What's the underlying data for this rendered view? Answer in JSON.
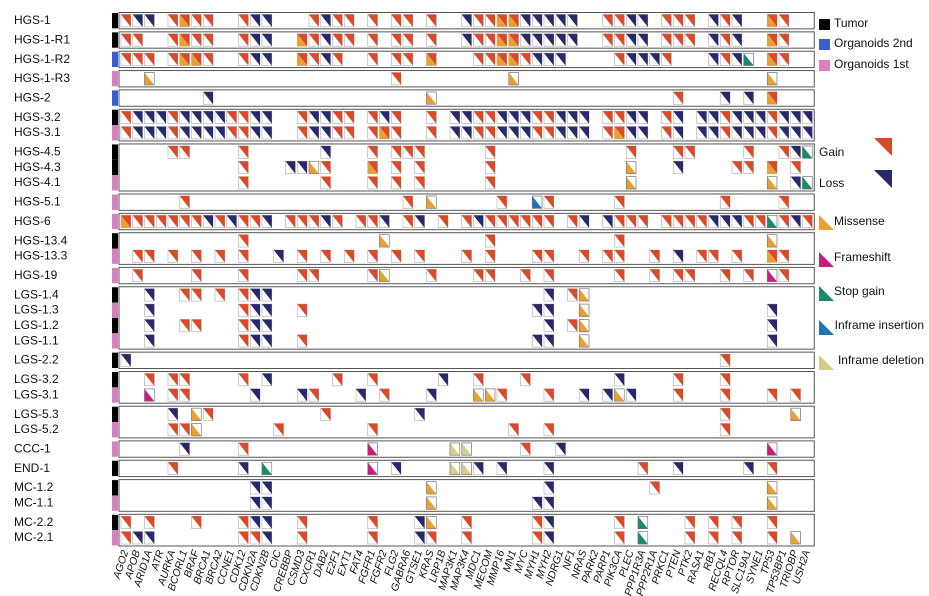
{
  "chart_data": {
    "type": "heatmap",
    "title": "",
    "samples": [
      "HGS-1",
      "HGS-1-R1",
      "HGS-1-R2",
      "HGS-1-R3",
      "HGS-2",
      "HGS-3.2",
      "HGS-3.1",
      "HGS-4.5",
      "HGS-4.3",
      "HGS-4.1",
      "HGS-5.1",
      "HGS-6",
      "HGS-13.4",
      "HGS-13.3",
      "HGS-19",
      "LGS-1.4",
      "LGS-1.3",
      "LGS-1.2",
      "LGS-1.1",
      "LGS-2.2",
      "LGS-3.2",
      "LGS-3.1",
      "LGS-5.3",
      "LGS-5.2",
      "CCC-1",
      "END-1",
      "MC-1.2",
      "MC-1.1",
      "MC-2.2",
      "MC-2.1"
    ],
    "sample_type": [
      "tumor",
      "tumor",
      "organoid_2nd",
      "organoid_1st",
      "organoid_2nd",
      "tumor",
      "organoid_1st",
      "tumor",
      "tumor",
      "organoid_1st",
      "organoid_1st",
      "organoid_1st",
      "tumor",
      "organoid_1st",
      "organoid_1st",
      "tumor",
      "organoid_1st",
      "tumor",
      "organoid_1st",
      "tumor",
      "tumor",
      "organoid_1st",
      "tumor",
      "organoid_1st",
      "organoid_1st",
      "tumor",
      "tumor",
      "organoid_1st",
      "tumor",
      "organoid_1st"
    ],
    "groups": [
      {
        "name": "HGS-1",
        "rows": [
          0
        ]
      },
      {
        "name": "HGS-1-R1",
        "rows": [
          1
        ]
      },
      {
        "name": "HGS-1-R2",
        "rows": [
          2
        ]
      },
      {
        "name": "HGS-1-R3",
        "rows": [
          3
        ]
      },
      {
        "name": "HGS-2",
        "rows": [
          4
        ]
      },
      {
        "name": "HGS-3",
        "rows": [
          5,
          6
        ]
      },
      {
        "name": "HGS-4",
        "rows": [
          7,
          8,
          9
        ]
      },
      {
        "name": "HGS-5",
        "rows": [
          10
        ]
      },
      {
        "name": "HGS-6",
        "rows": [
          11
        ]
      },
      {
        "name": "HGS-13",
        "rows": [
          12,
          13
        ]
      },
      {
        "name": "HGS-19",
        "rows": [
          14
        ]
      },
      {
        "name": "LGS-1",
        "rows": [
          15,
          16,
          17,
          18
        ]
      },
      {
        "name": "LGS-2",
        "rows": [
          19
        ]
      },
      {
        "name": "LGS-3",
        "rows": [
          20,
          21
        ]
      },
      {
        "name": "LGS-5",
        "rows": [
          22,
          23
        ]
      },
      {
        "name": "CCC-1",
        "rows": [
          24
        ]
      },
      {
        "name": "END-1",
        "rows": [
          25
        ]
      },
      {
        "name": "MC-1",
        "rows": [
          26,
          27
        ]
      },
      {
        "name": "MC-2",
        "rows": [
          28,
          29
        ]
      }
    ],
    "genes": [
      "AGO2",
      "APOB",
      "ARID1A",
      "ATR",
      "AURKA",
      "BCORL1",
      "BRAF",
      "BRCA1",
      "BRCA2",
      "CCNE1",
      "CDK12",
      "CDKN2A",
      "CDKN2B",
      "CIC",
      "CREBBP",
      "CSMD3",
      "CXCR1",
      "DAB2",
      "E2F1",
      "EXT1",
      "FAT4",
      "FGFR1",
      "FGFR2",
      "FLG2",
      "GABRA6",
      "GTSE1",
      "KRAS",
      "LRP1B",
      "MAP3K1",
      "MAP3K4",
      "MDC1",
      "MECOM",
      "MMP16",
      "MN1",
      "MYC",
      "MYH1",
      "MYH2",
      "NDRG1",
      "NF1",
      "NRAS",
      "PARK2",
      "PARP1",
      "PIK3CA",
      "PLEC",
      "PPP1R3A",
      "PPP2R1A",
      "PRKC1",
      "PTEN",
      "PTK2",
      "RASA1",
      "RB1",
      "RECQL4",
      "RPTOR",
      "SLC19A1",
      "SYNE1",
      "TP53",
      "TP53BP1",
      "TRIOBP",
      "USH2A"
    ],
    "x_tick_labels": [
      "AGO2",
      "APOB",
      "ARID1A",
      "ATR",
      "AURKA",
      "BCORL1",
      "BRAF",
      "BRCA1",
      "BRCA2",
      "CCNE1",
      "CDK12",
      "CDKN2A",
      "CDKN2B",
      "CIC",
      "CREBBP",
      "CSMD3",
      "CXCR1",
      "DAB2",
      "E2F1",
      "EXT1",
      "FAT4",
      "FGFR1",
      "FGFR2",
      "FLG2",
      "GABRA6",
      "GTSE1",
      "KRAS",
      "LRP1B",
      "MAP3K1",
      "MAP3K4",
      "MDC1",
      "MECOM",
      "MMP16",
      "MN1",
      "MYC",
      "MYH1",
      "MYH2",
      "NDRG1",
      "NF1",
      "NRAS",
      "PARK2",
      "PARP1",
      "PIK3CA",
      "PLEC",
      "PPP1R3A",
      "PPP2R1A",
      "PRKC1",
      "PTEN",
      "PTK2",
      "RASA1",
      "RB1",
      "RECQL4",
      "RPTOR",
      "SLC19A1",
      "SYNE1",
      "TP53",
      "TP53BP1",
      "TRIOBP",
      "USH2A"
    ],
    "legend_sample_types": [
      {
        "key": "tumor",
        "label": "Tumor",
        "color": "#000000"
      },
      {
        "key": "organoid_2nd",
        "label": "Organoids 2nd",
        "color": "#3a5fcd"
      },
      {
        "key": "organoid_1st",
        "label": "Organoids 1st",
        "color": "#d87fc0"
      }
    ],
    "legend_cnv": [
      {
        "key": "gain",
        "label": "Gain",
        "color": "#d94a2b"
      },
      {
        "key": "loss",
        "label": "Loss",
        "color": "#262a6b"
      }
    ],
    "legend_mutations": [
      {
        "key": "missense",
        "label": "Missense",
        "color": "#e8a030"
      },
      {
        "key": "frameshift",
        "label": "Frameshift",
        "color": "#c81e7a"
      },
      {
        "key": "stop_gain",
        "label": "Stop gain",
        "color": "#1a8a6e"
      },
      {
        "key": "inframe_insertion",
        "label": "Inframe insertion",
        "color": "#1f72b8"
      },
      {
        "key": "inframe_deletion",
        "label": "Inframe deletion",
        "color": "#d8cc8a"
      }
    ],
    "cells": {
      "0": {
        "0": "G",
        "1": "L",
        "2": "L",
        "4": "G",
        "5": "GM",
        "6": "G",
        "7": "G",
        "10": "G",
        "11": "L",
        "12": "L",
        "16": "G",
        "17": "L",
        "18": "G",
        "19": "G",
        "21": "G",
        "23": "G",
        "24": "G",
        "26": "G",
        "29": "L",
        "30": "G",
        "31": "G",
        "32": "GM",
        "33": "GM",
        "34": "L",
        "35": "L",
        "36": "L",
        "37": "L",
        "38": "L",
        "41": "G",
        "42": "G",
        "43": "L",
        "44": "L",
        "46": "G",
        "47": "G",
        "48": "G",
        "50": "L",
        "51": "G",
        "52": "L",
        "55": "GM",
        "56": "G"
      },
      "1": {
        "0": "G",
        "1": "G",
        "4": "G",
        "5": "GM",
        "6": "G",
        "7": "G",
        "10": "G",
        "11": "L",
        "12": "L",
        "15": "GM",
        "16": "G",
        "17": "L",
        "18": "G",
        "19": "G",
        "21": "G",
        "23": "G",
        "24": "G",
        "26": "G",
        "29": "L",
        "30": "G",
        "31": "G",
        "32": "GM",
        "33": "GM",
        "34": "L",
        "35": "L",
        "36": "L",
        "37": "L",
        "38": "L",
        "41": "G",
        "42": "G",
        "43": "L",
        "44": "L",
        "46": "G",
        "47": "G",
        "48": "G",
        "50": "L",
        "51": "G",
        "52": "L",
        "55": "GM",
        "56": "G"
      },
      "2": {
        "0": "G",
        "1": "G",
        "2": "G",
        "4": "G",
        "5": "GM",
        "6": "GM",
        "7": "G",
        "10": "G",
        "11": "L",
        "12": "L",
        "15": "GM",
        "16": "G",
        "17": "L",
        "18": "G",
        "21": "G",
        "23": "G",
        "24": "G",
        "26": "GM",
        "30": "G",
        "31": "G",
        "32": "GM",
        "33": "GM",
        "34": "G",
        "35": "L",
        "36": "L",
        "37": "L",
        "42": "G",
        "43": "L",
        "44": "L",
        "45": "L",
        "46": "G",
        "50": "L",
        "51": "G",
        "52": "L",
        "53": "S",
        "55": "GM",
        "56": "G"
      },
      "3": {
        "2": "M",
        "23": "G",
        "33": "M",
        "55": "M"
      },
      "4": {
        "7": "L",
        "26": "M",
        "47": "G",
        "51": "L",
        "53": "L",
        "55": "GM"
      },
      "5": {
        "0": "G",
        "1": "L",
        "2": "L",
        "3": "L",
        "4": "G",
        "5": "L",
        "6": "L",
        "7": "L",
        "8": "L",
        "9": "G",
        "10": "G",
        "11": "L",
        "12": "L",
        "15": "G",
        "16": "L",
        "17": "L",
        "18": "G",
        "19": "G",
        "21": "G",
        "22": "L",
        "23": "G",
        "26": "G",
        "28": "L",
        "29": "L",
        "30": "G",
        "31": "G",
        "32": "L",
        "33": "L",
        "34": "L",
        "35": "G",
        "36": "G",
        "37": "L",
        "38": "L",
        "39": "L",
        "41": "G",
        "42": "G",
        "43": "L",
        "44": "L",
        "46": "G",
        "47": "L",
        "49": "L",
        "50": "L",
        "51": "G",
        "52": "L",
        "53": "L",
        "54": "L",
        "55": "G",
        "56": "L",
        "57": "L",
        "58": "L"
      },
      "6": {
        "0": "G",
        "1": "L",
        "2": "L",
        "3": "L",
        "4": "G",
        "5": "L",
        "6": "L",
        "7": "L",
        "8": "L",
        "9": "G",
        "10": "G",
        "11": "L",
        "12": "L",
        "15": "G",
        "16": "L",
        "17": "L",
        "18": "G",
        "19": "G",
        "21": "G",
        "22": "GM",
        "23": "G",
        "26": "G",
        "28": "L",
        "29": "L",
        "30": "G",
        "31": "G",
        "32": "L",
        "33": "L",
        "34": "L",
        "35": "G",
        "36": "G",
        "37": "L",
        "38": "L",
        "39": "L",
        "41": "G",
        "42": "GM",
        "43": "L",
        "44": "L",
        "46": "G",
        "47": "L",
        "49": "L",
        "50": "L",
        "51": "G",
        "52": "L",
        "53": "L",
        "54": "L",
        "55": "G",
        "56": "L",
        "57": "L",
        "58": "L"
      },
      "7": {
        "4": "G",
        "5": "G",
        "10": "G",
        "17": "L",
        "21": "G",
        "23": "G",
        "24": "G",
        "25": "G",
        "31": "G",
        "43": "G",
        "47": "G",
        "48": "G",
        "53": "G",
        "56": "G",
        "57": "L",
        "58": "S"
      },
      "8": {
        "10": "G",
        "14": "L",
        "15": "L",
        "16": "M",
        "17": "G",
        "21": "GM",
        "23": "G",
        "25": "G",
        "31": "G",
        "43": "M",
        "47": "L",
        "52": "G",
        "53": "G",
        "55": "GM",
        "57": "G"
      },
      "9": {
        "10": "G",
        "17": "G",
        "21": "G",
        "23": "G",
        "25": "G",
        "31": "G",
        "43": "M",
        "55": "M",
        "57": "L",
        "58": "S"
      },
      "10": {
        "5": "G",
        "24": "G",
        "26": "M",
        "32": "G",
        "35": "IN",
        "36": "G",
        "42": "G",
        "51": "G",
        "56": "G"
      },
      "11": {
        "0": "GM",
        "1": "G",
        "2": "G",
        "3": "G",
        "4": "G",
        "5": "G",
        "6": "G",
        "7": "L",
        "8": "G",
        "9": "L",
        "10": "G",
        "11": "G",
        "12": "L",
        "14": "G",
        "15": "G",
        "16": "G",
        "17": "L",
        "18": "G",
        "20": "G",
        "21": "G",
        "22": "L",
        "24": "G",
        "25": "L",
        "27": "G",
        "29": "G",
        "30": "L",
        "31": "G",
        "32": "G",
        "33": "G",
        "34": "G",
        "35": "G",
        "36": "G",
        "38": "G",
        "39": "L",
        "41": "L",
        "42": "G",
        "43": "G",
        "44": "G",
        "46": "G",
        "47": "G",
        "48": "G",
        "49": "G",
        "50": "L",
        "51": "L",
        "52": "L",
        "53": "G",
        "54": "G",
        "55": "S",
        "56": "G",
        "57": "L",
        "58": "G"
      },
      "12": {
        "10": "G",
        "22": "M",
        "31": "G",
        "42": "G",
        "55": "M"
      },
      "13": {
        "1": "G",
        "2": "G",
        "4": "G",
        "6": "G",
        "8": "G",
        "10": "G",
        "13": "L",
        "15": "G",
        "17": "G",
        "19": "G",
        "21": "G",
        "23": "G",
        "25": "G",
        "29": "G",
        "31": "G",
        "35": "G",
        "36": "G",
        "39": "G",
        "41": "G",
        "42": "G",
        "45": "G",
        "47": "L",
        "49": "G",
        "50": "G",
        "52": "G",
        "55": "GM",
        "56": "G"
      },
      "14": {
        "1": "G",
        "6": "G",
        "10": "G",
        "15": "G",
        "16": "G",
        "21": "G",
        "22": "M",
        "26": "G",
        "30": "G",
        "31": "G",
        "34": "G",
        "36": "G",
        "42": "G",
        "45": "G",
        "47": "G",
        "48": "G",
        "51": "G",
        "53": "G",
        "55": "F",
        "56": "G"
      },
      "15": {
        "2": "L",
        "5": "G",
        "6": "G",
        "8": "G",
        "10": "G",
        "11": "L",
        "12": "L",
        "36": "L",
        "38": "G",
        "39": "M"
      },
      "16": {
        "2": "L",
        "10": "G",
        "11": "L",
        "12": "L",
        "15": "G",
        "35": "L",
        "36": "L",
        "39": "M",
        "55": "L"
      },
      "17": {
        "2": "L",
        "5": "G",
        "6": "G",
        "10": "G",
        "11": "L",
        "12": "L",
        "36": "L",
        "38": "G",
        "39": "M",
        "55": "L"
      },
      "18": {
        "2": "L",
        "10": "G",
        "11": "L",
        "12": "L",
        "15": "G",
        "35": "L",
        "36": "L",
        "39": "M",
        "55": "L"
      },
      "19": {
        "0": "L",
        "51": "G"
      },
      "20": {
        "2": "G",
        "4": "G",
        "5": "G",
        "10": "G",
        "12": "L",
        "18": "G",
        "21": "G",
        "27": "L",
        "30": "G",
        "34": "G",
        "42": "L",
        "47": "G",
        "51": "G"
      },
      "21": {
        "2": "F",
        "4": "G",
        "5": "G",
        "11": "L",
        "15": "L",
        "16": "G",
        "20": "L",
        "22": "G",
        "26": "L",
        "30": "M",
        "31": "M",
        "32": "G",
        "36": "G",
        "39": "L",
        "41": "L",
        "42": "M",
        "43": "L",
        "47": "G",
        "51": "G",
        "55": "G",
        "57": "G"
      },
      "22": {
        "4": "L",
        "6": "M",
        "7": "G",
        "17": "G",
        "25": "L",
        "51": "G",
        "57": "M"
      },
      "23": {
        "4": "G",
        "5": "G",
        "6": "M",
        "13": "G",
        "21": "G",
        "33": "G",
        "36": "G",
        "51": "G"
      },
      "24": {
        "5": "L",
        "10": "G",
        "21": "F",
        "28": "ID",
        "29": "ID",
        "34": "G",
        "37": "L",
        "55": "F"
      },
      "25": {
        "4": "G",
        "10": "L",
        "12": "S",
        "21": "F",
        "23": "L",
        "28": "ID",
        "29": "ID",
        "30": "L",
        "32": "L",
        "36": "L",
        "44": "G",
        "47": "L",
        "53": "L",
        "55": "G"
      },
      "26": {
        "11": "L",
        "12": "L",
        "26": "M",
        "36": "L",
        "45": "G",
        "55": "M"
      },
      "27": {
        "11": "L",
        "12": "L",
        "26": "M",
        "35": "L",
        "36": "L",
        "55": "M"
      },
      "28": {
        "0": "G",
        "2": "G",
        "6": "G",
        "10": "G",
        "11": "L",
        "12": "L",
        "15": "G",
        "21": "G",
        "25": "L",
        "26": "M",
        "29": "G",
        "35": "G",
        "36": "L",
        "42": "G",
        "44": "S",
        "48": "G",
        "50": "G",
        "52": "G",
        "55": "G"
      },
      "29": {
        "0": "G",
        "1": "L",
        "2": "L",
        "10": "G",
        "11": "G",
        "12": "L",
        "15": "G",
        "21": "G",
        "25": "L",
        "26": "G",
        "29": "G",
        "35": "G",
        "36": "L",
        "42": "G",
        "44": "S",
        "48": "G",
        "50": "G",
        "52": "G",
        "55": "G",
        "57": "M"
      }
    }
  }
}
